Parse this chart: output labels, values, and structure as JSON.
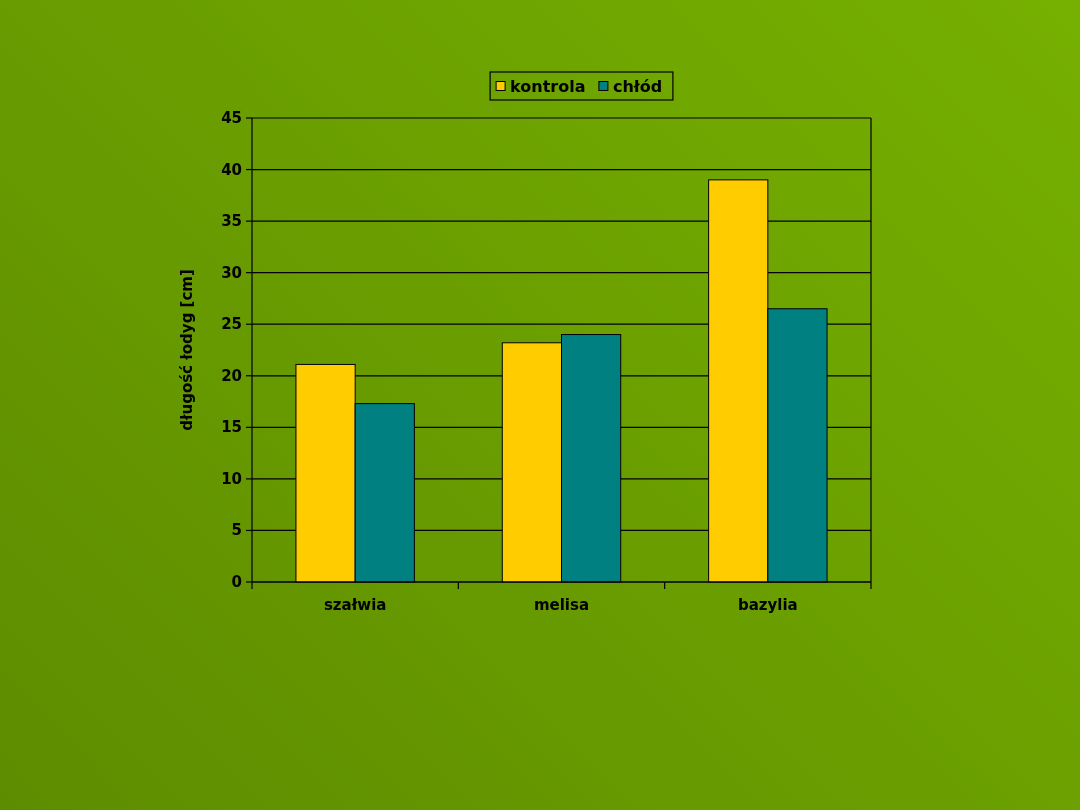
{
  "chart_data": {
    "type": "bar",
    "ylabel": "długość łodyg [cm]",
    "categories": [
      "szałwia",
      "melisa",
      "bazylia"
    ],
    "series": [
      {
        "name": "kontrola",
        "color": "#ffcc00",
        "values": [
          21.1,
          23.2,
          39
        ]
      },
      {
        "name": "chłód",
        "color": "#008080",
        "values": [
          17.3,
          24,
          26.5
        ]
      }
    ],
    "ylim": [
      0,
      45
    ],
    "yticks": [
      0,
      5,
      10,
      15,
      20,
      25,
      30,
      35,
      40,
      45
    ],
    "grid": "y",
    "legend": "top"
  }
}
